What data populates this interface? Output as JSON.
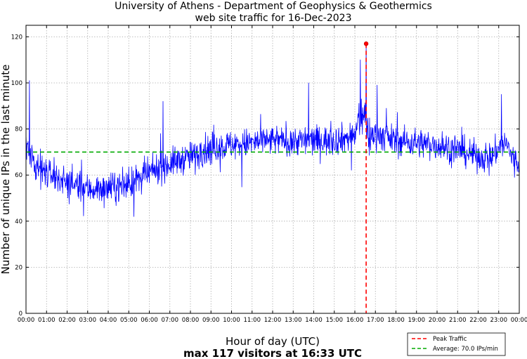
{
  "chart_data": {
    "type": "line",
    "title": "University of Athens - Department of Geophysics & Geothermics",
    "subtitle": "web site traffic for 16-Dec-2023",
    "xlabel": "Hour of day (UTC)",
    "xlabel2": "max 117 visitors at 16:33 UTC",
    "ylabel": "Number of unique IPs in the last minute",
    "xlim": [
      0,
      1440
    ],
    "ylim": [
      0,
      125
    ],
    "yticks": [
      0,
      20,
      40,
      60,
      80,
      100,
      120
    ],
    "ytick_labels": [
      "0",
      "20",
      "40",
      "60",
      "80",
      "100",
      "120"
    ],
    "xticks": [
      0,
      60,
      120,
      180,
      240,
      300,
      360,
      420,
      480,
      540,
      600,
      660,
      720,
      780,
      840,
      900,
      960,
      1020,
      1080,
      1140,
      1200,
      1260,
      1320,
      1380,
      1440
    ],
    "xtick_labels": [
      "00:00",
      "01:00",
      "02:00",
      "03:00",
      "04:00",
      "05:00",
      "06:00",
      "07:00",
      "08:00",
      "09:00",
      "10:00",
      "11:00",
      "12:00",
      "13:00",
      "14:00",
      "15:00",
      "16:00",
      "17:00",
      "18:00",
      "19:00",
      "20:00",
      "21:00",
      "22:00",
      "23:00",
      "00:00"
    ],
    "grid": true,
    "series": [
      {
        "name": "traffic",
        "color": "#0000ff",
        "interval_minutes": 1,
        "trend_x": [
          0,
          10,
          30,
          60,
          120,
          180,
          240,
          300,
          350,
          390,
          420,
          480,
          540,
          600,
          660,
          720,
          780,
          840,
          900,
          960,
          975,
          990,
          1000,
          1020,
          1080,
          1140,
          1200,
          1260,
          1320,
          1360,
          1380,
          1400,
          1420,
          1439
        ],
        "trend_y": [
          74,
          70,
          65,
          61,
          57,
          54,
          54,
          56,
          60,
          63,
          65,
          68,
          72,
          73,
          74,
          75,
          75,
          75,
          75,
          77,
          85,
          86,
          76,
          78,
          75,
          74,
          73,
          71,
          68,
          68,
          72,
          74,
          68,
          64
        ],
        "spikes": [
          {
            "x": 10,
            "y": 101
          },
          {
            "x": 400,
            "y": 92
          },
          {
            "x": 825,
            "y": 100
          },
          {
            "x": 976,
            "y": 110
          },
          {
            "x": 1025,
            "y": 99
          },
          {
            "x": 1388,
            "y": 95
          }
        ]
      }
    ],
    "peak": {
      "x": 993,
      "y": 117,
      "label": "Peak Traffic",
      "color": "#ff0000"
    },
    "average": {
      "y": 70.0,
      "label": "Average: 70.0 IPs/min",
      "color": "#00aa00"
    },
    "legend_position": "bottom-right"
  },
  "colors": {
    "line": "#0000ff",
    "peak": "#ff0000",
    "average": "#00aa00"
  }
}
